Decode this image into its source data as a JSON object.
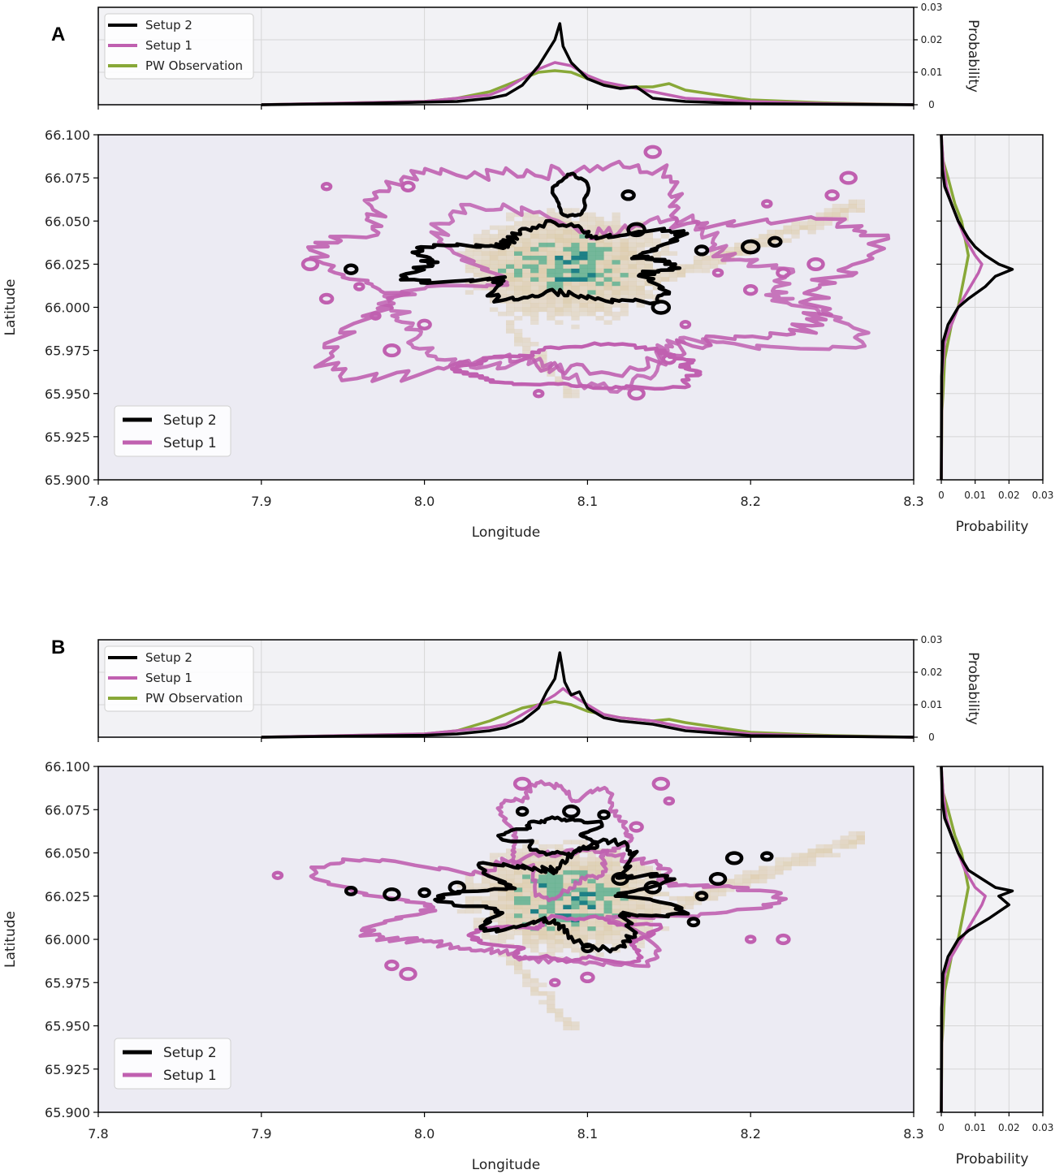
{
  "panels": [
    {
      "letter": "A"
    },
    {
      "letter": "B"
    }
  ],
  "colors": {
    "setup2": "#000000",
    "setup1": "#c060b0",
    "pw_observation": "#88a838",
    "hist_low": "#d9c49a",
    "hist_mid": "#5fae8a",
    "hist_high": "#137a80",
    "plot_bg": "#ecebf3",
    "marginal_bg": "#f2f2f5"
  },
  "chart_data": [
    {
      "type": "heatmap",
      "panel": "A",
      "xlabel": "Longitude",
      "ylabel": "Latitude",
      "xlim": [
        7.8,
        8.3
      ],
      "ylim": [
        65.9,
        66.1
      ],
      "xticks": [
        "7.8",
        "7.9",
        "8.0",
        "8.1",
        "8.2",
        "8.3"
      ],
      "yticks": [
        "66.100",
        "66.075",
        "66.050",
        "66.025",
        "66.000",
        "65.975",
        "65.950",
        "65.925",
        "65.900"
      ],
      "grid": false,
      "legend_placement": "lower-left",
      "legend": [
        "Setup 2",
        "Setup 1"
      ],
      "top_marginal": {
        "ylabel": "Probability",
        "yticks": [
          "0",
          "0.01",
          "0.02",
          "0.03"
        ],
        "ylim": [
          0,
          0.03
        ],
        "legend": [
          "Setup 2",
          "Setup 1",
          "PW Observation"
        ],
        "legend_placement": "top-left",
        "series": [
          {
            "name": "Setup 2",
            "x": [
              7.9,
              7.95,
              8.0,
              8.02,
              8.04,
              8.05,
              8.06,
              8.07,
              8.075,
              8.08,
              8.083,
              8.085,
              8.09,
              8.1,
              8.11,
              8.12,
              8.13,
              8.14,
              8.16,
              8.2,
              8.3
            ],
            "y": [
              0,
              0.0003,
              0.0008,
              0.001,
              0.002,
              0.003,
              0.006,
              0.012,
              0.016,
              0.02,
              0.025,
              0.018,
              0.013,
              0.008,
              0.006,
              0.005,
              0.0055,
              0.002,
              0.001,
              0.0003,
              0
            ]
          },
          {
            "name": "Setup 1",
            "x": [
              7.9,
              7.95,
              8.0,
              8.02,
              8.04,
              8.05,
              8.06,
              8.07,
              8.08,
              8.09,
              8.1,
              8.11,
              8.12,
              8.14,
              8.16,
              8.2,
              8.25,
              8.3
            ],
            "y": [
              0,
              0.0005,
              0.001,
              0.002,
              0.003,
              0.005,
              0.008,
              0.011,
              0.013,
              0.012,
              0.009,
              0.007,
              0.006,
              0.004,
              0.002,
              0.001,
              0.0003,
              0
            ]
          },
          {
            "name": "PW Observation",
            "x": [
              7.9,
              7.95,
              8.0,
              8.02,
              8.04,
              8.05,
              8.06,
              8.07,
              8.08,
              8.09,
              8.1,
              8.12,
              8.14,
              8.15,
              8.16,
              8.18,
              8.2,
              8.25,
              8.3
            ],
            "y": [
              0,
              0.0005,
              0.001,
              0.002,
              0.004,
              0.006,
              0.008,
              0.01,
              0.0105,
              0.01,
              0.008,
              0.0055,
              0.0055,
              0.0065,
              0.0045,
              0.003,
              0.0015,
              0.0005,
              0
            ]
          }
        ]
      },
      "right_marginal": {
        "xlabel": "Probability",
        "xticks": [
          "0",
          "0.01",
          "0.02",
          "0.03"
        ],
        "xlim": [
          0,
          0.03
        ],
        "series": [
          {
            "name": "Setup 2",
            "lat": [
              66.1,
              66.08,
              66.07,
              66.06,
              66.05,
              66.04,
              66.035,
              66.03,
              66.025,
              66.022,
              66.018,
              66.012,
              66.005,
              66.0,
              65.99,
              65.98,
              65.96,
              65.9
            ],
            "p": [
              0,
              0.0003,
              0.001,
              0.003,
              0.005,
              0.008,
              0.01,
              0.013,
              0.017,
              0.021,
              0.016,
              0.013,
              0.008,
              0.005,
              0.002,
              0.0005,
              0.0001,
              0
            ]
          },
          {
            "name": "Setup 1",
            "lat": [
              66.1,
              66.085,
              66.07,
              66.06,
              66.05,
              66.04,
              66.03,
              66.025,
              66.02,
              66.01,
              66.0,
              65.99,
              65.98,
              65.96,
              65.9
            ],
            "p": [
              0,
              0.0005,
              0.0015,
              0.003,
              0.005,
              0.007,
              0.01,
              0.012,
              0.011,
              0.008,
              0.005,
              0.003,
              0.001,
              0.0002,
              0
            ]
          },
          {
            "name": "PW Observation",
            "lat": [
              66.1,
              66.085,
              66.075,
              66.06,
              66.05,
              66.04,
              66.03,
              66.02,
              66.01,
              66.0,
              65.99,
              65.98,
              65.97,
              65.95,
              65.94,
              65.9
            ],
            "p": [
              0,
              0.0005,
              0.002,
              0.004,
              0.006,
              0.007,
              0.008,
              0.007,
              0.006,
              0.005,
              0.003,
              0.002,
              0.001,
              0.0005,
              0.0002,
              0
            ]
          }
        ]
      }
    },
    {
      "type": "heatmap",
      "panel": "B",
      "xlabel": "Longitude",
      "ylabel": "Latitude",
      "xlim": [
        7.8,
        8.3
      ],
      "ylim": [
        65.9,
        66.1
      ],
      "xticks": [
        "7.8",
        "7.9",
        "8.0",
        "8.1",
        "8.2",
        "8.3"
      ],
      "yticks": [
        "66.100",
        "66.075",
        "66.050",
        "66.025",
        "66.000",
        "65.975",
        "65.950",
        "65.925",
        "65.900"
      ],
      "grid": false,
      "legend_placement": "lower-left",
      "legend": [
        "Setup 2",
        "Setup 1"
      ],
      "top_marginal": {
        "ylabel": "Probability",
        "yticks": [
          "0",
          "0.01",
          "0.02",
          "0.03"
        ],
        "ylim": [
          0,
          0.03
        ],
        "legend": [
          "Setup 2",
          "Setup 1",
          "PW Observation"
        ],
        "legend_placement": "top-left",
        "series": [
          {
            "name": "Setup 2",
            "x": [
              7.9,
              7.95,
              8.0,
              8.02,
              8.04,
              8.05,
              8.06,
              8.07,
              8.075,
              8.08,
              8.083,
              8.086,
              8.09,
              8.095,
              8.1,
              8.11,
              8.12,
              8.14,
              8.16,
              8.2,
              8.3
            ],
            "y": [
              0,
              0.0003,
              0.0006,
              0.001,
              0.002,
              0.003,
              0.005,
              0.009,
              0.014,
              0.018,
              0.026,
              0.017,
              0.013,
              0.014,
              0.009,
              0.006,
              0.005,
              0.004,
              0.002,
              0.0005,
              0
            ]
          },
          {
            "name": "Setup 1",
            "x": [
              7.9,
              7.95,
              8.0,
              8.02,
              8.04,
              8.05,
              8.06,
              8.07,
              8.08,
              8.085,
              8.09,
              8.1,
              8.11,
              8.12,
              8.14,
              8.16,
              8.2,
              8.25,
              8.3
            ],
            "y": [
              0,
              0.0005,
              0.001,
              0.002,
              0.003,
              0.004,
              0.007,
              0.01,
              0.013,
              0.015,
              0.013,
              0.01,
              0.007,
              0.006,
              0.005,
              0.003,
              0.001,
              0.0003,
              0
            ]
          },
          {
            "name": "PW Observation",
            "x": [
              7.9,
              7.95,
              8.0,
              8.02,
              8.04,
              8.05,
              8.06,
              8.07,
              8.08,
              8.09,
              8.1,
              8.12,
              8.14,
              8.15,
              8.16,
              8.18,
              8.2,
              8.25,
              8.3
            ],
            "y": [
              0,
              0.0005,
              0.001,
              0.002,
              0.005,
              0.007,
              0.009,
              0.01,
              0.011,
              0.01,
              0.008,
              0.006,
              0.005,
              0.0055,
              0.0045,
              0.003,
              0.0015,
              0.0005,
              0
            ]
          }
        ]
      },
      "right_marginal": {
        "xlabel": "Probability",
        "xticks": [
          "0",
          "0.01",
          "0.02",
          "0.03"
        ],
        "xlim": [
          0,
          0.03
        ],
        "series": [
          {
            "name": "Setup 2",
            "lat": [
              66.1,
              66.08,
              66.07,
              66.06,
              66.05,
              66.04,
              66.035,
              66.03,
              66.028,
              66.025,
              66.02,
              66.012,
              66.005,
              66.0,
              65.99,
              65.98,
              65.96,
              65.9
            ],
            "p": [
              0,
              0.0003,
              0.001,
              0.003,
              0.005,
              0.008,
              0.012,
              0.016,
              0.021,
              0.017,
              0.02,
              0.014,
              0.008,
              0.005,
              0.002,
              0.0005,
              0.0001,
              0
            ]
          },
          {
            "name": "Setup 1",
            "lat": [
              66.1,
              66.085,
              66.07,
              66.06,
              66.05,
              66.04,
              66.03,
              66.025,
              66.02,
              66.01,
              66.0,
              65.99,
              65.98,
              65.96,
              65.9
            ],
            "p": [
              0,
              0.0005,
              0.0015,
              0.003,
              0.005,
              0.007,
              0.01,
              0.013,
              0.012,
              0.009,
              0.006,
              0.003,
              0.001,
              0.0002,
              0
            ]
          },
          {
            "name": "PW Observation",
            "lat": [
              66.1,
              66.085,
              66.075,
              66.06,
              66.05,
              66.04,
              66.03,
              66.02,
              66.01,
              66.0,
              65.99,
              65.98,
              65.97,
              65.95,
              65.94,
              65.9
            ],
            "p": [
              0,
              0.0005,
              0.002,
              0.004,
              0.006,
              0.007,
              0.008,
              0.007,
              0.006,
              0.005,
              0.003,
              0.002,
              0.001,
              0.0005,
              0.0002,
              0
            ]
          }
        ]
      }
    }
  ]
}
